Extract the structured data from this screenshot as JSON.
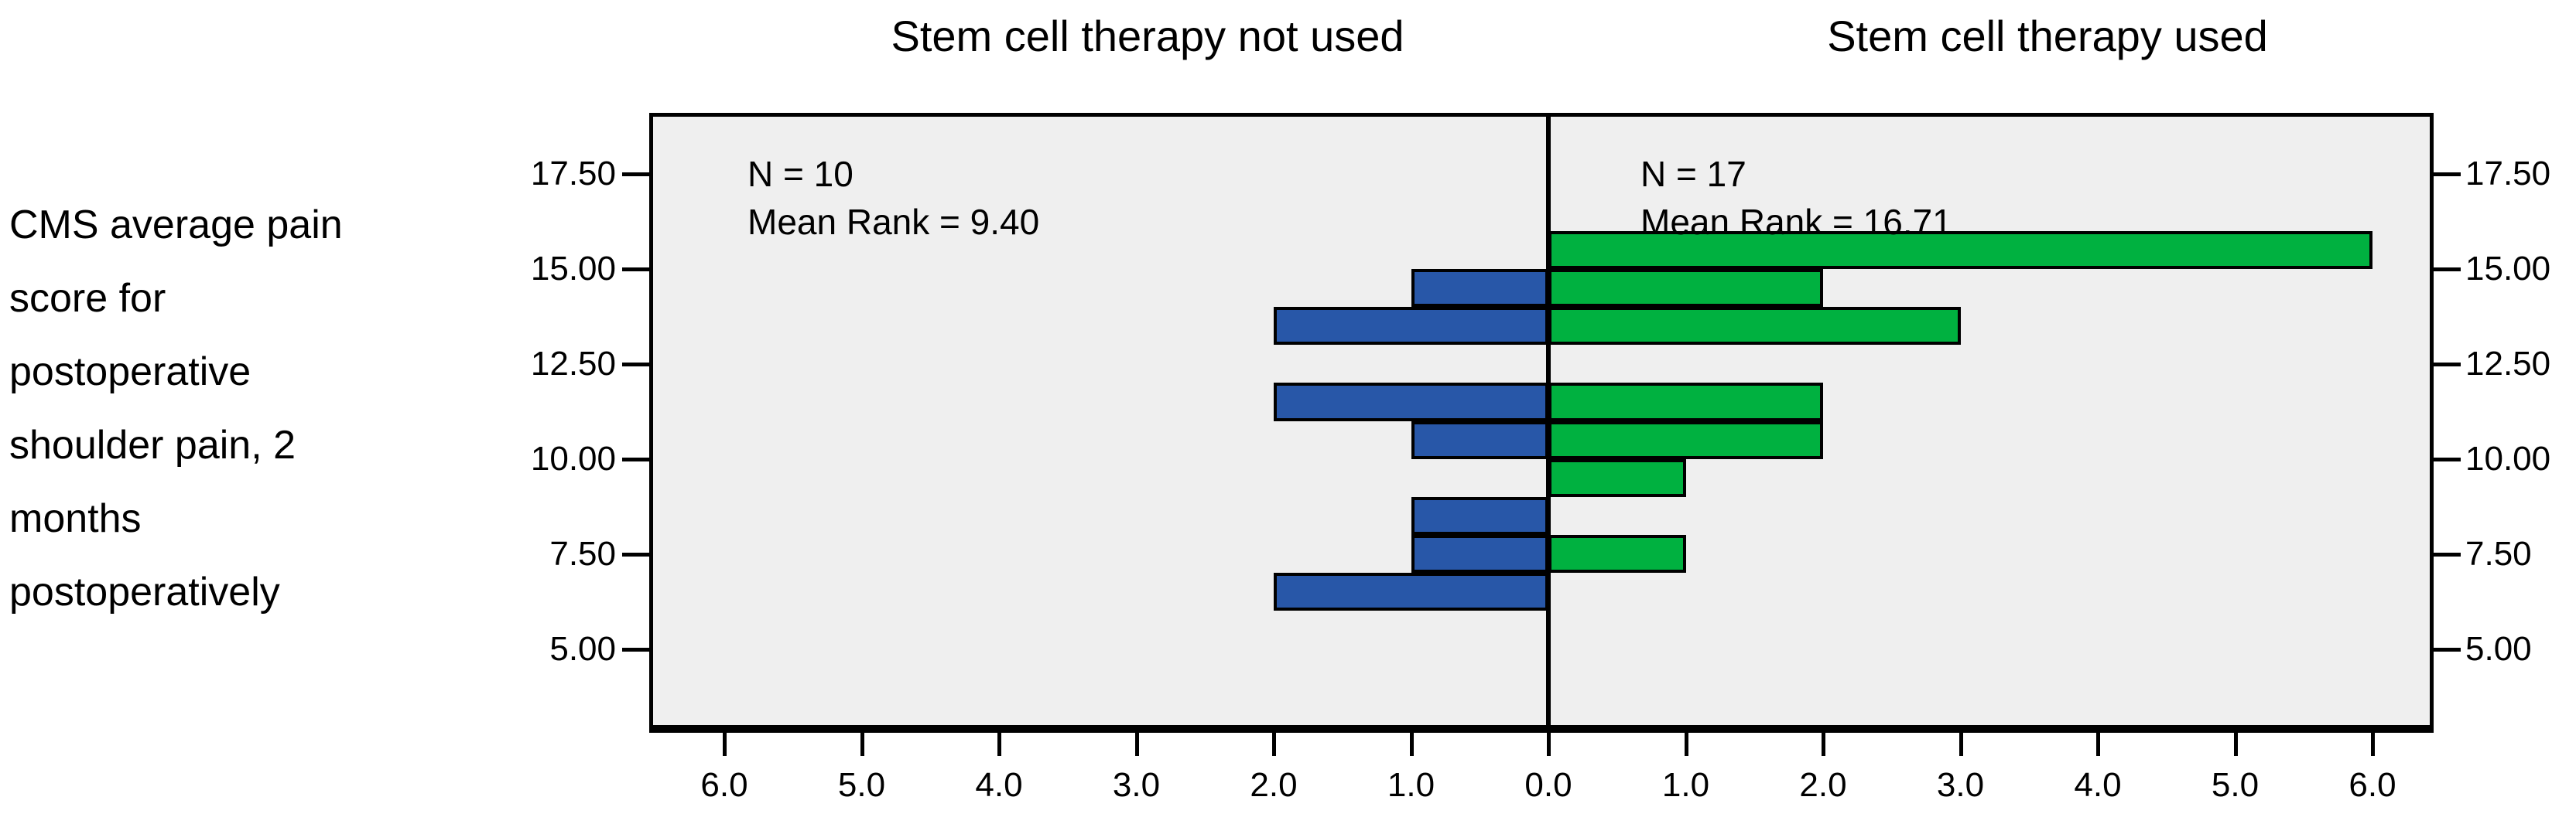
{
  "figure": {
    "variable_label": "CMS average pain\nscore for\npostoperative\nshoulder pain, 2\nmonths\npostoperatively"
  },
  "chart_data": {
    "type": "bar",
    "subtype": "back-to-back-histogram-population-pyramid",
    "title_left": "Stem cell therapy not used",
    "title_right": "Stem cell therapy used",
    "ylabel": "CMS average pain score for postoperative shoulder pain, 2 months postoperatively",
    "xlabel": "",
    "y_range": [
      3,
      19
    ],
    "y_ticks": [
      17.5,
      15.0,
      12.5,
      10.0,
      7.5,
      5.0
    ],
    "y_tick_labels": [
      "17.50",
      "15.00",
      "12.50",
      "10.00",
      "7.50",
      "5.00"
    ],
    "x_max": 6.5,
    "x_tick_values": [
      1,
      2,
      3,
      4,
      5,
      6
    ],
    "x_tick_labels_left": [
      "6.0",
      "5.0",
      "4.0",
      "3.0",
      "2.0",
      "1.0"
    ],
    "x_center_label": "0.0",
    "x_tick_labels_right": [
      "1.0",
      "2.0",
      "3.0",
      "4.0",
      "5.0",
      "6.0"
    ],
    "grid": false,
    "legend": "none",
    "series": [
      {
        "name": "Stem cell therapy not used",
        "side": "left",
        "color": "#2857A8",
        "n": 10,
        "mean_rank": 9.4,
        "annotation_lines": [
          "N = 10",
          "Mean Rank = 9.40"
        ],
        "bars": [
          {
            "bin_from": 14,
            "bin_to": 15,
            "count": 1
          },
          {
            "bin_from": 13,
            "bin_to": 14,
            "count": 2
          },
          {
            "bin_from": 11,
            "bin_to": 12,
            "count": 2
          },
          {
            "bin_from": 10,
            "bin_to": 11,
            "count": 1
          },
          {
            "bin_from": 8,
            "bin_to": 9,
            "count": 1
          },
          {
            "bin_from": 7,
            "bin_to": 8,
            "count": 1
          },
          {
            "bin_from": 6,
            "bin_to": 7,
            "count": 2
          }
        ]
      },
      {
        "name": "Stem cell therapy used",
        "side": "right",
        "color": "#00B140",
        "n": 17,
        "mean_rank": 16.71,
        "annotation_lines": [
          "N = 17",
          "Mean Rank = 16.71"
        ],
        "bars": [
          {
            "bin_from": 15,
            "bin_to": 16,
            "count": 6
          },
          {
            "bin_from": 14,
            "bin_to": 15,
            "count": 2
          },
          {
            "bin_from": 13,
            "bin_to": 14,
            "count": 3
          },
          {
            "bin_from": 11,
            "bin_to": 12,
            "count": 2
          },
          {
            "bin_from": 10,
            "bin_to": 11,
            "count": 2
          },
          {
            "bin_from": 9,
            "bin_to": 10,
            "count": 1
          },
          {
            "bin_from": 7,
            "bin_to": 8,
            "count": 1
          }
        ]
      }
    ],
    "colors": {
      "panel_background": "#EFEFEF",
      "left_bars": "#2857A8",
      "right_bars": "#00B140",
      "axis_and_text": "#000000",
      "page_background": "#FFFFFF"
    }
  }
}
